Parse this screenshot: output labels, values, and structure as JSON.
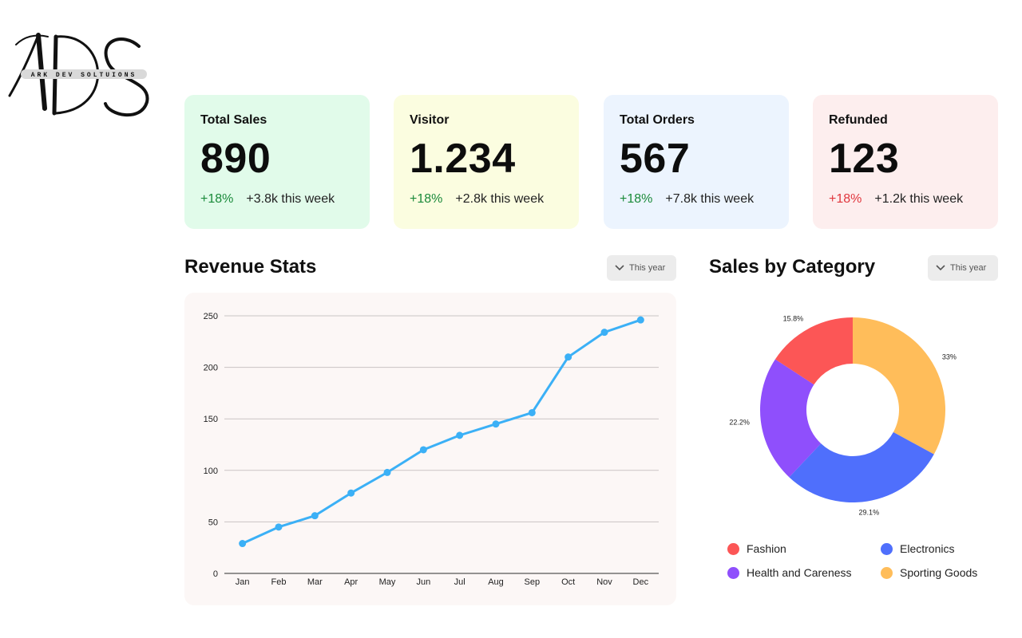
{
  "logo": {
    "letters": "ADS",
    "tagline": "ARK DEV SOLTUIONS"
  },
  "cards": [
    {
      "title": "Total Sales",
      "value": "890",
      "delta": "+18%",
      "delta_type": "positive",
      "week": "+3.8k this week",
      "bg": "#e1fbea"
    },
    {
      "title": "Visitor",
      "value": "1.234",
      "delta": "+18%",
      "delta_type": "positive",
      "week": "+2.8k this week",
      "bg": "#fbfde0"
    },
    {
      "title": "Total Orders",
      "value": "567",
      "delta": "+18%",
      "delta_type": "positive",
      "week": "+7.8k this week",
      "bg": "#ecf4fe"
    },
    {
      "title": "Refunded",
      "value": "123",
      "delta": "+18%",
      "delta_type": "negative",
      "week": "+1.2k this week",
      "bg": "#fdeeee"
    }
  ],
  "revenue": {
    "title": "Revenue Stats",
    "filter": "This year"
  },
  "category": {
    "title": "Sales by Category",
    "filter": "This year"
  },
  "colors": {
    "positive": "#1a8a3a",
    "negative": "#e0363d",
    "line": "#3bb0f6",
    "fashion": "#fc5656",
    "electronics": "#4f6ffc",
    "health": "#8f4ffc",
    "sporting": "#ffbd5a"
  },
  "chart_data": [
    {
      "type": "line",
      "title": "Revenue Stats",
      "categories": [
        "Jan",
        "Feb",
        "Mar",
        "Apr",
        "May",
        "Jun",
        "Jul",
        "Aug",
        "Sep",
        "Oct",
        "Nov",
        "Dec"
      ],
      "values": [
        29,
        45,
        56,
        78,
        98,
        120,
        134,
        145,
        156,
        210,
        234,
        246
      ],
      "ylim": [
        0,
        250
      ],
      "yticks": [
        0,
        50,
        100,
        150,
        200,
        250
      ],
      "grid": true
    },
    {
      "type": "pie",
      "title": "Sales by Category",
      "donut": true,
      "categories": [
        "Sporting Goods",
        "Electronics",
        "Health and Careness",
        "Fashion"
      ],
      "values": [
        33,
        29.1,
        22.2,
        15.8
      ],
      "labels": [
        "33%",
        "29.1%",
        "22.2%",
        "15.8%"
      ],
      "colors": [
        "#ffbd5a",
        "#4f6ffc",
        "#8f4ffc",
        "#fc5656"
      ],
      "legend": [
        "Fashion",
        "Electronics",
        "Health and Careness",
        "Sporting Goods"
      ],
      "legend_position": "bottom"
    }
  ]
}
